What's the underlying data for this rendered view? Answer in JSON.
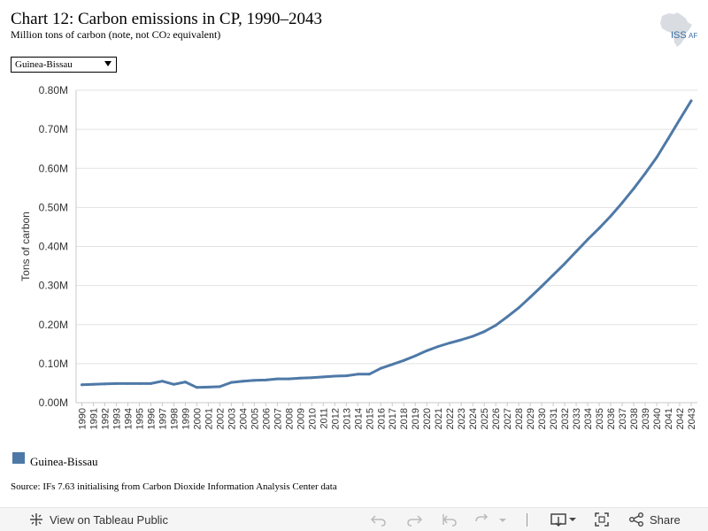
{
  "header": {
    "title": "Chart 12: Carbon emissions in CP, 1990–2043",
    "subtitle_main": "Million tons of carbon (note, not CO",
    "subtitle_sub": "2",
    "subtitle_tail": " equivalent)",
    "logo_text": "ISS",
    "logo_suffix": "AF"
  },
  "filter": {
    "selected": "Guinea-Bissau"
  },
  "chart_data": {
    "type": "line",
    "title": "",
    "xlabel": "",
    "ylabel": "Tons of carbon",
    "ylim": [
      0,
      0.8
    ],
    "yticks": [
      0,
      0.1,
      0.2,
      0.3,
      0.4,
      0.5,
      0.6,
      0.7,
      0.8
    ],
    "ytick_labels": [
      "0.00M",
      "0.10M",
      "0.20M",
      "0.30M",
      "0.40M",
      "0.50M",
      "0.60M",
      "0.70M",
      "0.80M"
    ],
    "grid": true,
    "legend": "bottom-left",
    "line_color": "#4e79a7",
    "x": [
      1990,
      1991,
      1992,
      1993,
      1994,
      1995,
      1996,
      1997,
      1998,
      1999,
      2000,
      2001,
      2002,
      2003,
      2004,
      2005,
      2006,
      2007,
      2008,
      2009,
      2010,
      2011,
      2012,
      2013,
      2014,
      2015,
      2016,
      2017,
      2018,
      2019,
      2020,
      2021,
      2022,
      2023,
      2024,
      2025,
      2026,
      2027,
      2028,
      2029,
      2030,
      2031,
      2032,
      2033,
      2034,
      2035,
      2036,
      2037,
      2038,
      2039,
      2040,
      2041,
      2042,
      2043
    ],
    "series": [
      {
        "name": "Guinea-Bissau",
        "values": [
          0.046,
          0.047,
          0.048,
          0.049,
          0.049,
          0.049,
          0.049,
          0.055,
          0.047,
          0.053,
          0.039,
          0.04,
          0.041,
          0.052,
          0.055,
          0.057,
          0.058,
          0.061,
          0.061,
          0.063,
          0.064,
          0.066,
          0.068,
          0.069,
          0.073,
          0.073,
          0.088,
          0.098,
          0.108,
          0.12,
          0.133,
          0.144,
          0.153,
          0.161,
          0.17,
          0.182,
          0.198,
          0.22,
          0.243,
          0.27,
          0.298,
          0.327,
          0.356,
          0.387,
          0.418,
          0.447,
          0.478,
          0.512,
          0.548,
          0.587,
          0.628,
          0.676,
          0.725,
          0.773
        ]
      }
    ]
  },
  "source": "Source: IFs 7.63 initialising from Carbon Dioxide Information Analysis Center data",
  "toolbar": {
    "view_label": "View on Tableau Public",
    "share_label": "Share"
  }
}
